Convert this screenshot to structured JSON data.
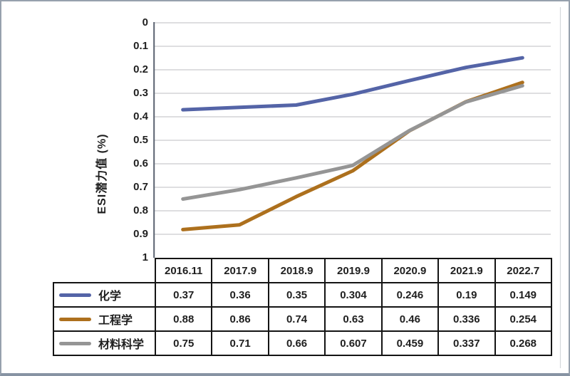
{
  "chart_data": {
    "type": "line",
    "title": "",
    "xlabel": "",
    "ylabel": "ESI潜力值 (%)",
    "categories": [
      "2016.11",
      "2017.9",
      "2018.9",
      "2019.9",
      "2020.9",
      "2021.9",
      "2022.7"
    ],
    "series": [
      {
        "name": "化学",
        "color": "#5464a7",
        "values": [
          0.37,
          0.36,
          0.35,
          0.304,
          0.246,
          0.19,
          0.149
        ]
      },
      {
        "name": "工程学",
        "color": "#ad701d",
        "values": [
          0.88,
          0.86,
          0.74,
          0.63,
          0.46,
          0.336,
          0.254
        ]
      },
      {
        "name": "材料科学",
        "color": "#959595",
        "values": [
          0.75,
          0.71,
          0.66,
          0.607,
          0.459,
          0.337,
          0.268
        ]
      }
    ],
    "y_axis": {
      "min": 0,
      "max": 1,
      "step": 0.1,
      "inverted": true,
      "tick_labels": [
        "0",
        "0.1",
        "0.2",
        "0.3",
        "0.4",
        "0.5",
        "0.6",
        "0.7",
        "0.8",
        "0.9",
        "1"
      ]
    },
    "grid": true,
    "legend_position": "data-table-left",
    "data_table_shown": true
  },
  "colors": {
    "gridline": "#c9cbcd",
    "axis_line": "#5a6270",
    "chart_edge": "#d5d8db",
    "table_border": "#141414",
    "text": "#1f1f1f",
    "frame_border": "#97a1ad",
    "background": "#ffffff"
  }
}
